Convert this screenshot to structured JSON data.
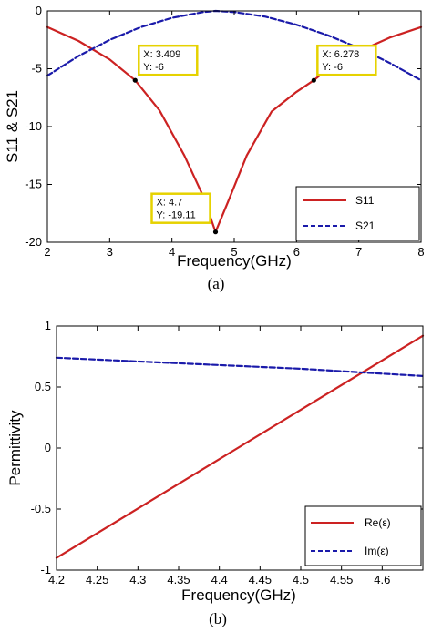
{
  "chart_data": [
    {
      "type": "line",
      "caption": "(a)",
      "xlabel": "Frequency(GHz)",
      "ylabel": "S11 & S21",
      "xlim": [
        2,
        8
      ],
      "ylim": [
        -20,
        0
      ],
      "xticks": [
        2,
        3,
        4,
        5,
        6,
        7,
        8
      ],
      "yticks": [
        0,
        -5,
        -10,
        -15,
        -20
      ],
      "grid": false,
      "legend_position": "bottom-right",
      "series": [
        {
          "name": "S11",
          "style": "solid",
          "color": "#cc2222",
          "x": [
            2.0,
            2.5,
            3.0,
            3.409,
            3.8,
            4.2,
            4.5,
            4.7,
            4.9,
            5.2,
            5.6,
            6.0,
            6.278,
            6.6,
            7.0,
            7.5,
            8.0
          ],
          "y": [
            -1.4,
            -2.6,
            -4.2,
            -6.0,
            -8.6,
            -12.5,
            -16.0,
            -19.11,
            -16.5,
            -12.5,
            -8.7,
            -7.0,
            -6.0,
            -4.6,
            -3.5,
            -2.3,
            -1.4
          ]
        },
        {
          "name": "S21",
          "style": "dashed",
          "color": "#1a1aaa",
          "x": [
            2.0,
            2.5,
            3.0,
            3.5,
            4.0,
            4.5,
            4.7,
            5.0,
            5.5,
            6.0,
            6.5,
            7.0,
            7.5,
            8.0
          ],
          "y": [
            -5.6,
            -3.9,
            -2.5,
            -1.4,
            -0.6,
            -0.1,
            0.0,
            -0.1,
            -0.5,
            -1.2,
            -2.1,
            -3.2,
            -4.5,
            -6.0
          ]
        }
      ],
      "datatips": [
        {
          "x_text": "X: 3.409",
          "y_text": "Y: -6",
          "x": 3.409,
          "y": -6
        },
        {
          "x_text": "X: 6.278",
          "y_text": "Y: -6",
          "x": 6.278,
          "y": -6
        },
        {
          "x_text": "X: 4.7",
          "y_text": "Y: -19.11",
          "x": 4.7,
          "y": -19.11
        }
      ]
    },
    {
      "type": "line",
      "caption": "(b)",
      "xlabel": "Frequency(GHz)",
      "ylabel": "Permittivity",
      "xlim": [
        4.2,
        4.65
      ],
      "ylim": [
        -1,
        1
      ],
      "xticks": [
        4.2,
        4.25,
        4.3,
        4.35,
        4.4,
        4.45,
        4.5,
        4.55,
        4.6
      ],
      "xtick_labels": [
        "4.2",
        "4.25",
        "4.3",
        "4.35",
        "4.4",
        "4.45",
        "4.5",
        "4.55",
        "4.6"
      ],
      "yticks": [
        1,
        0.5,
        0,
        -0.5,
        -1
      ],
      "ytick_labels": [
        "1",
        "0.5",
        "0",
        "-0.5",
        "-1"
      ],
      "grid": false,
      "legend_position": "bottom-right",
      "series": [
        {
          "name": "Re(ε)",
          "style": "solid",
          "color": "#cc2222",
          "x": [
            4.2,
            4.65
          ],
          "y": [
            -0.9,
            0.92
          ]
        },
        {
          "name": "Im(ε)",
          "style": "dashed",
          "color": "#1a1aaa",
          "x": [
            4.2,
            4.3,
            4.4,
            4.5,
            4.6,
            4.65
          ],
          "y": [
            0.74,
            0.71,
            0.68,
            0.65,
            0.61,
            0.59
          ]
        }
      ]
    }
  ]
}
